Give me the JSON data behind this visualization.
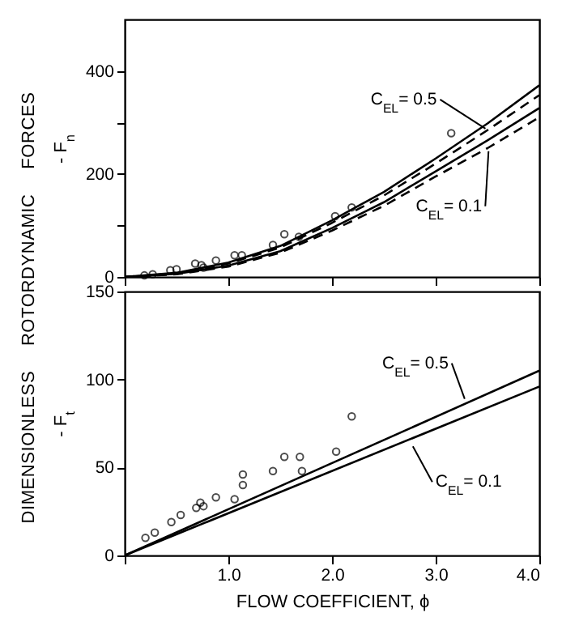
{
  "chart_data": [
    {
      "type": "line",
      "ylabel": "- F$_{n}$",
      "xlim": [
        0,
        4
      ],
      "ylim": [
        0,
        500
      ],
      "xticks": [
        {
          "value": 0,
          "label": null
        },
        {
          "value": 1,
          "label": null
        },
        {
          "value": 2,
          "label": null
        },
        {
          "value": 3,
          "label": null
        },
        {
          "value": 4,
          "label": null
        }
      ],
      "yticks": [
        0,
        {
          "value": 100,
          "label": null
        },
        200,
        {
          "value": 300,
          "label": null
        },
        400
      ],
      "tick_labels": "y",
      "grid": false,
      "series": [
        {
          "color": "#000000",
          "line_style": "solid",
          "x": [
            0,
            0.5,
            1,
            1.5,
            2,
            2.5,
            3,
            3.5,
            4
          ],
          "values": [
            0,
            8,
            28,
            60,
            110,
            165,
            230,
            298,
            372
          ]
        },
        {
          "color": "#000000",
          "line_style": "dashed",
          "x": [
            0,
            0.5,
            1,
            1.5,
            2,
            2.5,
            3,
            3.5,
            4
          ],
          "values": [
            0,
            7,
            26,
            57,
            105,
            158,
            220,
            285,
            353
          ]
        },
        {
          "color": "#000000",
          "line_style": "solid",
          "x": [
            0,
            0.5,
            1,
            1.5,
            2,
            2.5,
            3,
            3.5,
            4
          ],
          "values": [
            0,
            6,
            22,
            50,
            95,
            145,
            205,
            265,
            328
          ]
        },
        {
          "color": "#000000",
          "line_style": "dashed",
          "x": [
            0,
            0.5,
            1,
            1.5,
            2,
            2.5,
            3,
            3.5,
            4
          ],
          "values": [
            0,
            5,
            20,
            47,
            90,
            138,
            195,
            250,
            310
          ]
        },
        {
          "type": "scatter",
          "marker": "circle",
          "color": "#000000",
          "x": [
            0.19,
            0.27,
            0.44,
            0.5,
            0.68,
            0.74,
            0.76,
            0.88,
            1.06,
            1.13,
            1.43,
            1.54,
            1.68,
            2.03,
            2.19,
            3.15
          ],
          "values": [
            3,
            5,
            13,
            15,
            26,
            23,
            18,
            32,
            42,
            42,
            62,
            83,
            78,
            118,
            135,
            279
          ]
        }
      ],
      "annotations": [
        "DIMENSIONLESS ROTORDYNAMIC FORCES",
        {
          "text": "C$_{EL}$= 0.5",
          "x": 3.48,
          "y": 288
        },
        {
          "text": "C$_{EL}$= 0.1",
          "x": 3.51,
          "y": 244
        }
      ]
    },
    {
      "type": "line",
      "xlabel": "FLOW COEFFICIENT,   ϕ",
      "ylabel": "- F$_{t}$",
      "xlim": [
        0,
        4
      ],
      "ylim": [
        0,
        150
      ],
      "xticks": [
        {
          "value": 0,
          "label": null
        },
        {
          "value": 1,
          "label": "1.0"
        },
        {
          "value": 2,
          "label": "2.0"
        },
        {
          "value": 3,
          "label": "3.0"
        },
        {
          "value": 4,
          "label": "4.0"
        }
      ],
      "yticks": [
        0,
        50,
        100,
        150
      ],
      "grid": false,
      "series": [
        {
          "color": "#000000",
          "line_style": "solid",
          "x": [
            0,
            4
          ],
          "values": [
            0,
            105
          ]
        },
        {
          "color": "#000000",
          "line_style": "solid",
          "x": [
            0,
            4
          ],
          "values": [
            0,
            96
          ]
        },
        {
          "type": "scatter",
          "marker": "circle",
          "color": "#000000",
          "x": [
            0.2,
            0.29,
            0.45,
            0.54,
            0.69,
            0.73,
            0.76,
            0.88,
            1.06,
            1.14,
            1.14,
            1.43,
            1.54,
            1.69,
            1.71,
            2.04,
            2.19
          ],
          "values": [
            10,
            13,
            19,
            23,
            27,
            30,
            28,
            33,
            32,
            40,
            46,
            48,
            56,
            56,
            48,
            59,
            79
          ]
        }
      ],
      "annotations": [
        {
          "text": "C$_{EL}$= 0.5",
          "x": 3.28,
          "y": 89
        },
        {
          "text": "C$_{EL}$= 0.1",
          "x": 2.78,
          "y": 62
        }
      ]
    }
  ]
}
